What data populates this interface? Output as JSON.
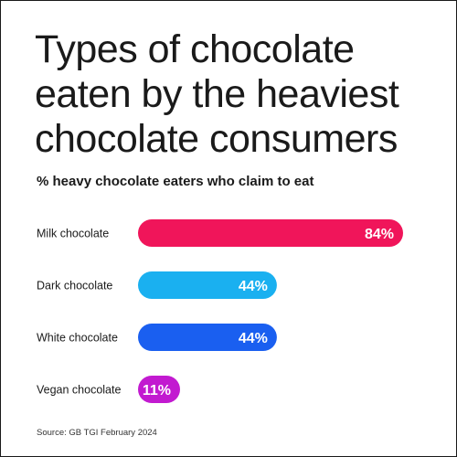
{
  "chart_data": {
    "type": "bar",
    "orientation": "horizontal",
    "title": "Types of chocolate eaten by the heaviest chocolate consumers",
    "subtitle": "% heavy chocolate eaters who claim to eat",
    "categories": [
      "Milk chocolate",
      "Dark chocolate",
      "White chocolate",
      "Vegan chocolate"
    ],
    "values": [
      84,
      44,
      44,
      11
    ],
    "value_labels": [
      "84%",
      "44%",
      "44%",
      "11%"
    ],
    "unit": "%",
    "bar_colors": [
      "#f0155a",
      "#1ab0f0",
      "#1a5ff0",
      "#c21ad0"
    ],
    "value_label_color": "#ffffff",
    "grid": false,
    "legend": "none",
    "xlim": [
      0,
      100
    ]
  },
  "source": "Source: GB TGI February 2024"
}
